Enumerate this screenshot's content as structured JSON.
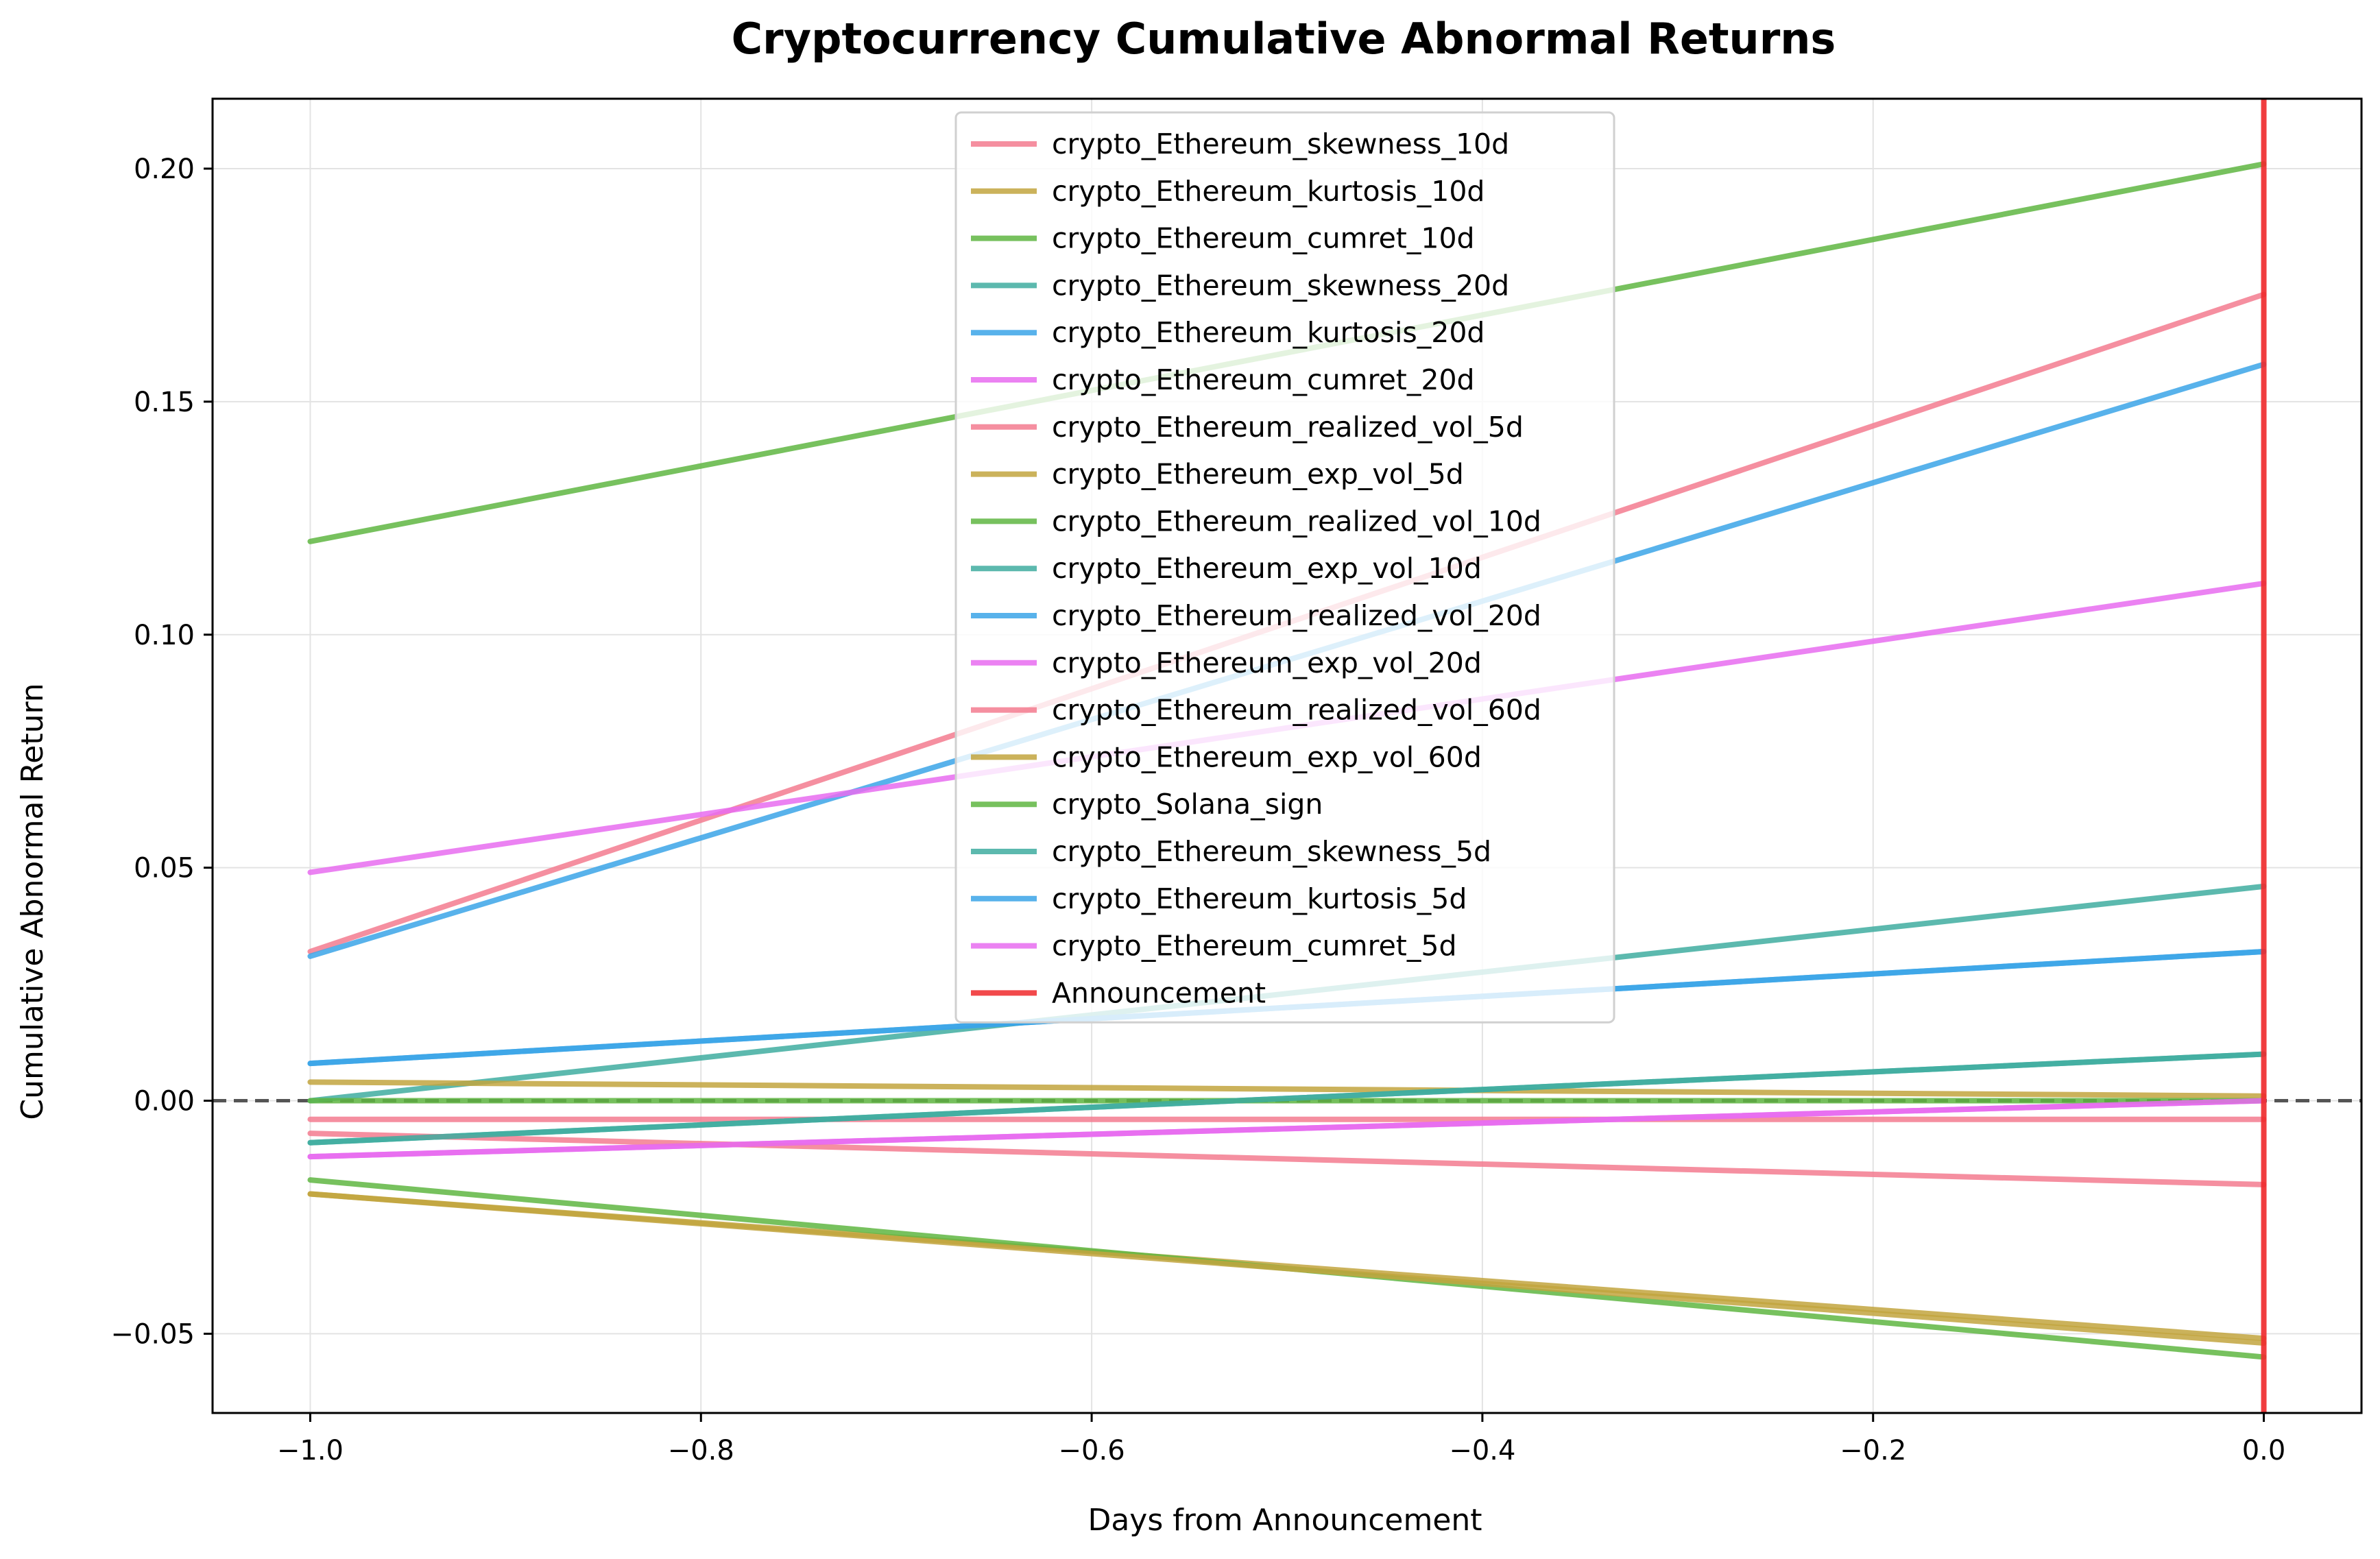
{
  "chart_data": {
    "type": "line",
    "title": "Cryptocurrency Cumulative Abnormal Returns",
    "xlabel": "Days from Announcement",
    "ylabel": "Cumulative Abnormal Return",
    "xlim": [
      -1.05,
      0.05
    ],
    "ylim": [
      -0.067,
      0.215
    ],
    "x_ticks": [
      -1.0,
      -0.8,
      -0.6,
      -0.4,
      -0.2,
      0.0
    ],
    "x_tick_labels": [
      "−1.0",
      "−0.8",
      "−0.6",
      "−0.4",
      "−0.2",
      "0.0"
    ],
    "y_ticks": [
      -0.05,
      0.0,
      0.05,
      0.1,
      0.15,
      0.2
    ],
    "y_tick_labels": [
      "−0.05",
      "0.00",
      "0.05",
      "0.10",
      "0.15",
      "0.20"
    ],
    "grid": true,
    "legend_position": "top-center",
    "zero_line": {
      "y": 0,
      "style": "dashed",
      "color": "#555555"
    },
    "x": [
      -1.0,
      0.0
    ],
    "series": [
      {
        "name": "crypto_Ethereum_skewness_10d",
        "color": "#f37b8f",
        "values": [
          0.032,
          0.173
        ]
      },
      {
        "name": "crypto_Ethereum_kurtosis_10d",
        "color": "#c2a43e",
        "values": [
          -0.02,
          -0.051
        ]
      },
      {
        "name": "crypto_Ethereum_cumret_10d",
        "color": "#5fb642",
        "values": [
          0.12,
          0.201
        ]
      },
      {
        "name": "crypto_Ethereum_skewness_20d",
        "color": "#3fada0",
        "values": [
          0.0,
          0.046
        ]
      },
      {
        "name": "crypto_Ethereum_kurtosis_20d",
        "color": "#3ba4e8",
        "values": [
          0.031,
          0.158
        ]
      },
      {
        "name": "crypto_Ethereum_cumret_20d",
        "color": "#e86cf0",
        "values": [
          0.049,
          0.111
        ]
      },
      {
        "name": "crypto_Ethereum_realized_vol_5d",
        "color": "#f37b8f",
        "values": [
          -0.004,
          -0.004
        ]
      },
      {
        "name": "crypto_Ethereum_exp_vol_5d",
        "color": "#c2a43e",
        "values": [
          0.004,
          0.001
        ]
      },
      {
        "name": "crypto_Ethereum_realized_vol_10d",
        "color": "#5fb642",
        "values": [
          -0.017,
          -0.055
        ]
      },
      {
        "name": "crypto_Ethereum_exp_vol_10d",
        "color": "#3fada0",
        "values": [
          -0.009,
          0.01
        ]
      },
      {
        "name": "crypto_Ethereum_realized_vol_20d",
        "color": "#3ba4e8",
        "values": [
          0.008,
          0.032
        ]
      },
      {
        "name": "crypto_Ethereum_exp_vol_20d",
        "color": "#e86cf0",
        "values": [
          -0.012,
          0.0
        ]
      },
      {
        "name": "crypto_Ethereum_realized_vol_60d",
        "color": "#f37b8f",
        "values": [
          -0.007,
          -0.018
        ]
      },
      {
        "name": "crypto_Ethereum_exp_vol_60d",
        "color": "#c2a43e",
        "values": [
          -0.02,
          -0.052
        ]
      },
      {
        "name": "crypto_Solana_sign",
        "color": "#5fb642",
        "values": [
          0.0,
          0.0
        ]
      },
      {
        "name": "crypto_Ethereum_skewness_5d",
        "color": "#3fada0",
        "values": [
          -0.009,
          0.01
        ]
      },
      {
        "name": "crypto_Ethereum_kurtosis_5d",
        "color": "#3ba4e8",
        "values": [
          0.008,
          0.032
        ]
      },
      {
        "name": "crypto_Ethereum_cumret_5d",
        "color": "#e86cf0",
        "values": [
          -0.012,
          0.0
        ]
      }
    ],
    "announcement": {
      "name": "Announcement",
      "x": 0.0,
      "color": "#f0292b"
    }
  }
}
